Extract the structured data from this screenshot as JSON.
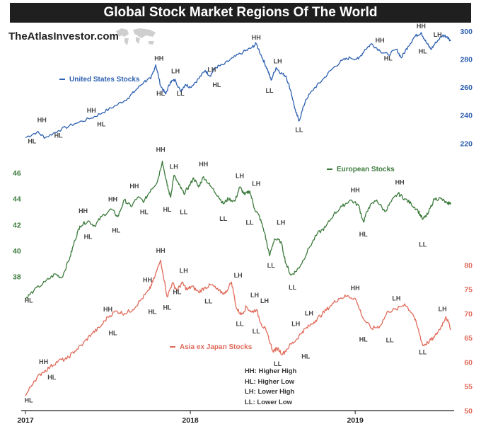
{
  "title": "Global Stock Market Regions Of The World",
  "brand": "TheAtlasInvestor.com",
  "icons": {
    "map": "world-map-icon"
  },
  "colors": {
    "us": "#2c5fb0",
    "europe": "#3c7a3c",
    "asia": "#e06a5a"
  },
  "key": [
    "HH: Higher High",
    "HL: Higher Low",
    "LH: Lower High",
    "LL: Lower Low"
  ],
  "chart_data": {
    "type": "line",
    "x_ticks": [
      "2017",
      "2018",
      "2019"
    ],
    "series": [
      {
        "name": "United States Stocks",
        "ylim": [
          206,
          302
        ],
        "ticks": [
          "220",
          "240",
          "260",
          "280",
          "300"
        ],
        "points": [
          [
            0,
            224
          ],
          [
            0.07,
            228
          ],
          [
            0.12,
            224
          ],
          [
            0.2,
            229
          ],
          [
            0.3,
            234
          ],
          [
            0.4,
            238
          ],
          [
            0.47,
            242
          ],
          [
            0.55,
            247
          ],
          [
            0.62,
            252
          ],
          [
            0.67,
            258
          ],
          [
            0.72,
            264
          ],
          [
            0.76,
            266
          ],
          [
            0.79,
            276
          ],
          [
            0.82,
            261
          ],
          [
            0.85,
            255
          ],
          [
            0.88,
            264
          ],
          [
            0.91,
            265
          ],
          [
            0.94,
            257
          ],
          [
            0.97,
            262
          ],
          [
            1.0,
            260
          ],
          [
            1.05,
            266
          ],
          [
            1.09,
            272
          ],
          [
            1.12,
            268
          ],
          [
            1.15,
            274
          ],
          [
            1.2,
            276
          ],
          [
            1.26,
            281
          ],
          [
            1.32,
            285
          ],
          [
            1.37,
            288
          ],
          [
            1.4,
            291
          ],
          [
            1.44,
            280
          ],
          [
            1.47,
            272
          ],
          [
            1.49,
            265
          ],
          [
            1.52,
            274
          ],
          [
            1.55,
            270
          ],
          [
            1.58,
            268
          ],
          [
            1.61,
            257
          ],
          [
            1.64,
            242
          ],
          [
            1.66,
            236
          ],
          [
            1.7,
            251
          ],
          [
            1.75,
            259
          ],
          [
            1.8,
            265
          ],
          [
            1.86,
            273
          ],
          [
            1.92,
            279
          ],
          [
            1.97,
            281
          ],
          [
            2.02,
            280
          ],
          [
            2.06,
            287
          ],
          [
            2.1,
            291
          ],
          [
            2.15,
            286
          ],
          [
            2.2,
            283
          ],
          [
            2.25,
            287
          ],
          [
            2.28,
            281
          ],
          [
            2.32,
            289
          ],
          [
            2.36,
            296
          ],
          [
            2.4,
            299
          ],
          [
            2.43,
            292
          ],
          [
            2.46,
            287
          ],
          [
            2.49,
            292
          ],
          [
            2.53,
            297
          ],
          [
            2.56,
            296
          ],
          [
            2.58,
            293
          ]
        ]
      },
      {
        "name": "European Stocks",
        "ylim": [
          36.4,
          48.4
        ],
        "ticks": [
          "38",
          "40",
          "42",
          "44",
          "46"
        ],
        "points": [
          [
            0,
            36.3
          ],
          [
            0.05,
            36.9
          ],
          [
            0.12,
            37.6
          ],
          [
            0.18,
            38.2
          ],
          [
            0.22,
            37.9
          ],
          [
            0.27,
            39.5
          ],
          [
            0.3,
            40.8
          ],
          [
            0.33,
            41.9
          ],
          [
            0.38,
            42.3
          ],
          [
            0.42,
            41.9
          ],
          [
            0.46,
            42.6
          ],
          [
            0.52,
            43.2
          ],
          [
            0.56,
            42.6
          ],
          [
            0.6,
            43.9
          ],
          [
            0.64,
            43.4
          ],
          [
            0.68,
            44.1
          ],
          [
            0.72,
            43.8
          ],
          [
            0.76,
            44.7
          ],
          [
            0.8,
            45.3
          ],
          [
            0.83,
            46.9
          ],
          [
            0.86,
            45.0
          ],
          [
            0.88,
            44.1
          ],
          [
            0.9,
            45.8
          ],
          [
            0.93,
            45.1
          ],
          [
            0.96,
            44.4
          ],
          [
            0.99,
            44.9
          ],
          [
            1.02,
            45.6
          ],
          [
            1.05,
            44.9
          ],
          [
            1.08,
            45.7
          ],
          [
            1.12,
            45.0
          ],
          [
            1.17,
            44.2
          ],
          [
            1.2,
            43.6
          ],
          [
            1.23,
            44.0
          ],
          [
            1.27,
            43.8
          ],
          [
            1.3,
            44.9
          ],
          [
            1.33,
            44.3
          ],
          [
            1.36,
            44.6
          ],
          [
            1.39,
            43.2
          ],
          [
            1.42,
            42.6
          ],
          [
            1.45,
            41.4
          ],
          [
            1.48,
            39.6
          ],
          [
            1.51,
            40.9
          ],
          [
            1.55,
            40.7
          ],
          [
            1.58,
            39.0
          ],
          [
            1.61,
            38.1
          ],
          [
            1.64,
            38.4
          ],
          [
            1.67,
            38.9
          ],
          [
            1.72,
            40.2
          ],
          [
            1.77,
            41.3
          ],
          [
            1.82,
            41.8
          ],
          [
            1.87,
            42.8
          ],
          [
            1.92,
            43.4
          ],
          [
            1.97,
            43.9
          ],
          [
            2.02,
            43.5
          ],
          [
            2.05,
            42.2
          ],
          [
            2.08,
            43.3
          ],
          [
            2.13,
            43.9
          ],
          [
            2.18,
            43.0
          ],
          [
            2.22,
            43.8
          ],
          [
            2.26,
            44.4
          ],
          [
            2.3,
            44.0
          ],
          [
            2.34,
            43.6
          ],
          [
            2.38,
            43.1
          ],
          [
            2.41,
            42.4
          ],
          [
            2.44,
            42.8
          ],
          [
            2.48,
            44.0
          ],
          [
            2.52,
            44.0
          ],
          [
            2.56,
            43.6
          ],
          [
            2.58,
            43.7
          ]
        ]
      },
      {
        "name": "Asia ex Japan Stocks",
        "ylim": [
          50,
          85
        ],
        "ticks": [
          "50",
          "55",
          "60",
          "65",
          "70",
          "75",
          "80"
        ],
        "points": [
          [
            0,
            53.0
          ],
          [
            0.05,
            56.0
          ],
          [
            0.1,
            57.8
          ],
          [
            0.15,
            59.0
          ],
          [
            0.2,
            60.3
          ],
          [
            0.25,
            60.6
          ],
          [
            0.3,
            62.3
          ],
          [
            0.35,
            63.8
          ],
          [
            0.4,
            65.8
          ],
          [
            0.45,
            67.1
          ],
          [
            0.5,
            69.3
          ],
          [
            0.55,
            70.5
          ],
          [
            0.6,
            70.0
          ],
          [
            0.65,
            70.8
          ],
          [
            0.7,
            72.8
          ],
          [
            0.75,
            74.8
          ],
          [
            0.78,
            77.2
          ],
          [
            0.82,
            81.0
          ],
          [
            0.86,
            73.4
          ],
          [
            0.89,
            76.3
          ],
          [
            0.92,
            74.8
          ],
          [
            0.95,
            76.3
          ],
          [
            0.98,
            74.9
          ],
          [
            1.01,
            75.6
          ],
          [
            1.05,
            74.4
          ],
          [
            1.09,
            75.4
          ],
          [
            1.13,
            75.9
          ],
          [
            1.17,
            74.7
          ],
          [
            1.21,
            74.1
          ],
          [
            1.25,
            76.5
          ],
          [
            1.28,
            71.0
          ],
          [
            1.31,
            69.8
          ],
          [
            1.34,
            71.4
          ],
          [
            1.37,
            70.3
          ],
          [
            1.4,
            70.8
          ],
          [
            1.43,
            67.9
          ],
          [
            1.46,
            66.4
          ],
          [
            1.5,
            62.3
          ],
          [
            1.53,
            62.8
          ],
          [
            1.56,
            61.6
          ],
          [
            1.6,
            63.3
          ],
          [
            1.64,
            64.5
          ],
          [
            1.68,
            66.3
          ],
          [
            1.72,
            67.4
          ],
          [
            1.76,
            68.6
          ],
          [
            1.8,
            69.9
          ],
          [
            1.85,
            71.6
          ],
          [
            1.9,
            73.1
          ],
          [
            1.95,
            73.6
          ],
          [
            2.0,
            73.1
          ],
          [
            2.05,
            68.9
          ],
          [
            2.1,
            66.9
          ],
          [
            2.15,
            67.4
          ],
          [
            2.2,
            70.5
          ],
          [
            2.25,
            70.8
          ],
          [
            2.3,
            72.0
          ],
          [
            2.35,
            69.9
          ],
          [
            2.38,
            67.0
          ],
          [
            2.41,
            63.4
          ],
          [
            2.44,
            64.0
          ],
          [
            2.48,
            65.1
          ],
          [
            2.52,
            67.2
          ],
          [
            2.55,
            69.4
          ],
          [
            2.58,
            66.8
          ]
        ]
      }
    ],
    "annotations": [
      {
        "series": 0,
        "text": "HL",
        "x": 0.04,
        "y": 220
      },
      {
        "series": 0,
        "text": "HH",
        "x": 0.1,
        "y": 235
      },
      {
        "series": 0,
        "text": "HL",
        "x": 0.2,
        "y": 224
      },
      {
        "series": 0,
        "text": "HH",
        "x": 0.4,
        "y": 242
      },
      {
        "series": 0,
        "text": "HL",
        "x": 0.46,
        "y": 232
      },
      {
        "series": 0,
        "text": "HH",
        "x": 0.81,
        "y": 279
      },
      {
        "series": 0,
        "text": "HL",
        "x": 0.82,
        "y": 254
      },
      {
        "series": 0,
        "text": "LH",
        "x": 0.91,
        "y": 270
      },
      {
        "series": 0,
        "text": "LL",
        "x": 0.94,
        "y": 254
      },
      {
        "series": 0,
        "text": "LH",
        "x": 1.13,
        "y": 271
      },
      {
        "series": 0,
        "text": "HL",
        "x": 1.16,
        "y": 260
      },
      {
        "series": 0,
        "text": "HH",
        "x": 1.4,
        "y": 294
      },
      {
        "series": 0,
        "text": "LH",
        "x": 1.53,
        "y": 277
      },
      {
        "series": 0,
        "text": "LL",
        "x": 1.48,
        "y": 256
      },
      {
        "series": 0,
        "text": "LL",
        "x": 1.66,
        "y": 228
      },
      {
        "series": 0,
        "text": "HH",
        "x": 2.15,
        "y": 292
      },
      {
        "series": 0,
        "text": "HL",
        "x": 2.2,
        "y": 279
      },
      {
        "series": 0,
        "text": "HH",
        "x": 2.4,
        "y": 302
      },
      {
        "series": 0,
        "text": "HL",
        "x": 2.41,
        "y": 284
      },
      {
        "series": 0,
        "text": "LH",
        "x": 2.5,
        "y": 296
      },
      {
        "series": 1,
        "text": "HL",
        "x": 0.02,
        "y": 36.0
      },
      {
        "series": 1,
        "text": "HH",
        "x": 0.35,
        "y": 42.9
      },
      {
        "series": 1,
        "text": "HL",
        "x": 0.38,
        "y": 40.9
      },
      {
        "series": 1,
        "text": "HH",
        "x": 0.53,
        "y": 43.8
      },
      {
        "series": 1,
        "text": "HL",
        "x": 0.55,
        "y": 41.4
      },
      {
        "series": 1,
        "text": "HH",
        "x": 0.66,
        "y": 44.8
      },
      {
        "series": 1,
        "text": "HL",
        "x": 0.72,
        "y": 42.8
      },
      {
        "series": 1,
        "text": "HH",
        "x": 0.82,
        "y": 47.6
      },
      {
        "series": 1,
        "text": "LH",
        "x": 0.9,
        "y": 46.3
      },
      {
        "series": 1,
        "text": "HL",
        "x": 0.86,
        "y": 43.0
      },
      {
        "series": 1,
        "text": "LL",
        "x": 0.96,
        "y": 42.8
      },
      {
        "series": 1,
        "text": "HH",
        "x": 1.08,
        "y": 46.5
      },
      {
        "series": 1,
        "text": "LL",
        "x": 1.2,
        "y": 42.3
      },
      {
        "series": 1,
        "text": "LH",
        "x": 1.3,
        "y": 45.6
      },
      {
        "series": 1,
        "text": "LL",
        "x": 1.36,
        "y": 42.0
      },
      {
        "series": 1,
        "text": "LH",
        "x": 1.4,
        "y": 45.0
      },
      {
        "series": 1,
        "text": "LH",
        "x": 1.55,
        "y": 42.0
      },
      {
        "series": 1,
        "text": "LL",
        "x": 1.49,
        "y": 38.7
      },
      {
        "series": 1,
        "text": "LL",
        "x": 1.62,
        "y": 37.0
      },
      {
        "series": 1,
        "text": "HH",
        "x": 2.0,
        "y": 44.5
      },
      {
        "series": 1,
        "text": "HL",
        "x": 2.05,
        "y": 41.1
      },
      {
        "series": 1,
        "text": "HH",
        "x": 2.27,
        "y": 45.1
      },
      {
        "series": 1,
        "text": "LL",
        "x": 2.41,
        "y": 40.3
      },
      {
        "series": 1,
        "text": "Legend:European Stocks",
        "x": 0,
        "y": 0
      }
    ],
    "asia_annotations": [
      {
        "text": "HL",
        "x": 0.02,
        "y": 51.7
      },
      {
        "text": "HH",
        "x": 0.11,
        "y": 59.6
      },
      {
        "text": "HL",
        "x": 0.16,
        "y": 56.4
      },
      {
        "text": "HH",
        "x": 0.5,
        "y": 70.4
      },
      {
        "text": "HL",
        "x": 0.53,
        "y": 65.5
      },
      {
        "text": "HH",
        "x": 0.74,
        "y": 76.5
      },
      {
        "text": "HL",
        "x": 0.77,
        "y": 69.9
      },
      {
        "text": "HH",
        "x": 0.82,
        "y": 82.5
      },
      {
        "text": "HL",
        "x": 0.86,
        "y": 70.8
      },
      {
        "text": "LH",
        "x": 0.96,
        "y": 78.4
      },
      {
        "text": "HL",
        "x": 0.92,
        "y": 74.0
      },
      {
        "text": "LL",
        "x": 1.11,
        "y": 72.1
      },
      {
        "text": "LH",
        "x": 1.29,
        "y": 77.4
      },
      {
        "text": "LL",
        "x": 1.3,
        "y": 67.4
      },
      {
        "text": "LH",
        "x": 1.39,
        "y": 73.3
      },
      {
        "text": "LH",
        "x": 1.45,
        "y": 72.2
      },
      {
        "text": "LL",
        "x": 1.4,
        "y": 65.9
      },
      {
        "text": "LL",
        "x": 1.53,
        "y": 59.2
      },
      {
        "text": "LH",
        "x": 1.64,
        "y": 67.4
      },
      {
        "text": "LH",
        "x": 1.72,
        "y": 69.6
      },
      {
        "text": "HL",
        "x": 1.7,
        "y": 60.7
      },
      {
        "text": "HH",
        "x": 2.0,
        "y": 74.8
      },
      {
        "text": "HL",
        "x": 2.05,
        "y": 64.2
      },
      {
        "text": "LH",
        "x": 2.25,
        "y": 72.7
      },
      {
        "text": "LL",
        "x": 2.21,
        "y": 64.1
      },
      {
        "text": "LL",
        "x": 2.41,
        "y": 61.6
      },
      {
        "text": "LH",
        "x": 2.53,
        "y": 70.5
      }
    ]
  },
  "legend_labels": {
    "us": "United States Stocks",
    "europe": "European Stocks",
    "asia": "Asia ex Japan Stocks"
  }
}
